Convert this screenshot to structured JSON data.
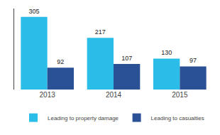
{
  "chart_data": {
    "type": "bar",
    "categories": [
      "2013",
      "2014",
      "2015"
    ],
    "series": [
      {
        "name": "Leading to property damage",
        "color": "#29bde8",
        "values": [
          305,
          217,
          130
        ]
      },
      {
        "name": "Leading to casualties",
        "color": "#2a5096",
        "values": [
          92,
          107,
          97
        ]
      }
    ],
    "ylim": [
      0,
      340
    ],
    "yticks": [],
    "grid": false,
    "legend": "bottom",
    "data_labels": true,
    "tick_labels": "x"
  }
}
